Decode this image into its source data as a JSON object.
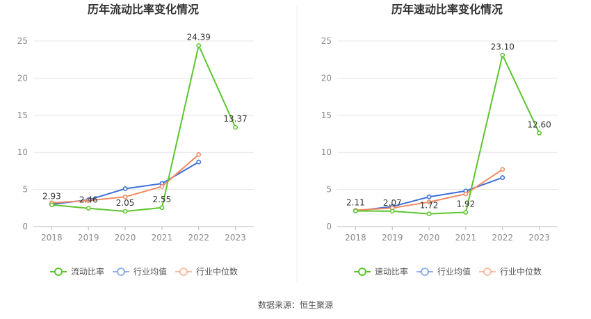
{
  "source_note": "数据来源：恒生聚源",
  "chart_data": [
    {
      "type": "line",
      "title": "历年流动比率变化情况",
      "categories": [
        "2018",
        "2019",
        "2020",
        "2021",
        "2022",
        "2023"
      ],
      "yticks": [
        "0",
        "5",
        "10",
        "15",
        "20",
        "25"
      ],
      "ylim": [
        0,
        25
      ],
      "grid": true,
      "legend_position": "bottom",
      "series": [
        {
          "name": "流动比率",
          "color": "#5cc52e",
          "values": [
            2.93,
            2.46,
            2.05,
            2.55,
            24.39,
            13.37
          ],
          "labels": [
            "2.93",
            "2.46",
            "2.05",
            "2.55",
            "24.39",
            "13.37"
          ]
        },
        {
          "name": "行业均值",
          "color": "#3b6fd9",
          "values": [
            3.0,
            3.6,
            5.1,
            5.8,
            8.7,
            null
          ]
        },
        {
          "name": "行业中位数",
          "color": "#f08a61",
          "values": [
            3.2,
            3.5,
            4.0,
            5.4,
            9.7,
            null
          ]
        }
      ]
    },
    {
      "type": "line",
      "title": "历年速动比率变化情况",
      "categories": [
        "2018",
        "2019",
        "2020",
        "2021",
        "2022",
        "2023"
      ],
      "yticks": [
        "0",
        "5",
        "10",
        "15",
        "20",
        "25"
      ],
      "ylim": [
        0,
        25
      ],
      "grid": true,
      "legend_position": "bottom",
      "series": [
        {
          "name": "速动比率",
          "color": "#5cc52e",
          "values": [
            2.11,
            2.07,
            1.72,
            1.92,
            23.1,
            12.6
          ],
          "labels": [
            "2.11",
            "2.07",
            "1.72",
            "1.92",
            "23.10",
            "12.60"
          ]
        },
        {
          "name": "行业均值",
          "color": "#3b6fd9",
          "values": [
            2.1,
            2.7,
            4.0,
            4.8,
            6.6,
            null
          ]
        },
        {
          "name": "行业中位数",
          "color": "#f08a61",
          "values": [
            2.2,
            2.5,
            3.3,
            4.4,
            7.7,
            null
          ]
        }
      ]
    }
  ]
}
